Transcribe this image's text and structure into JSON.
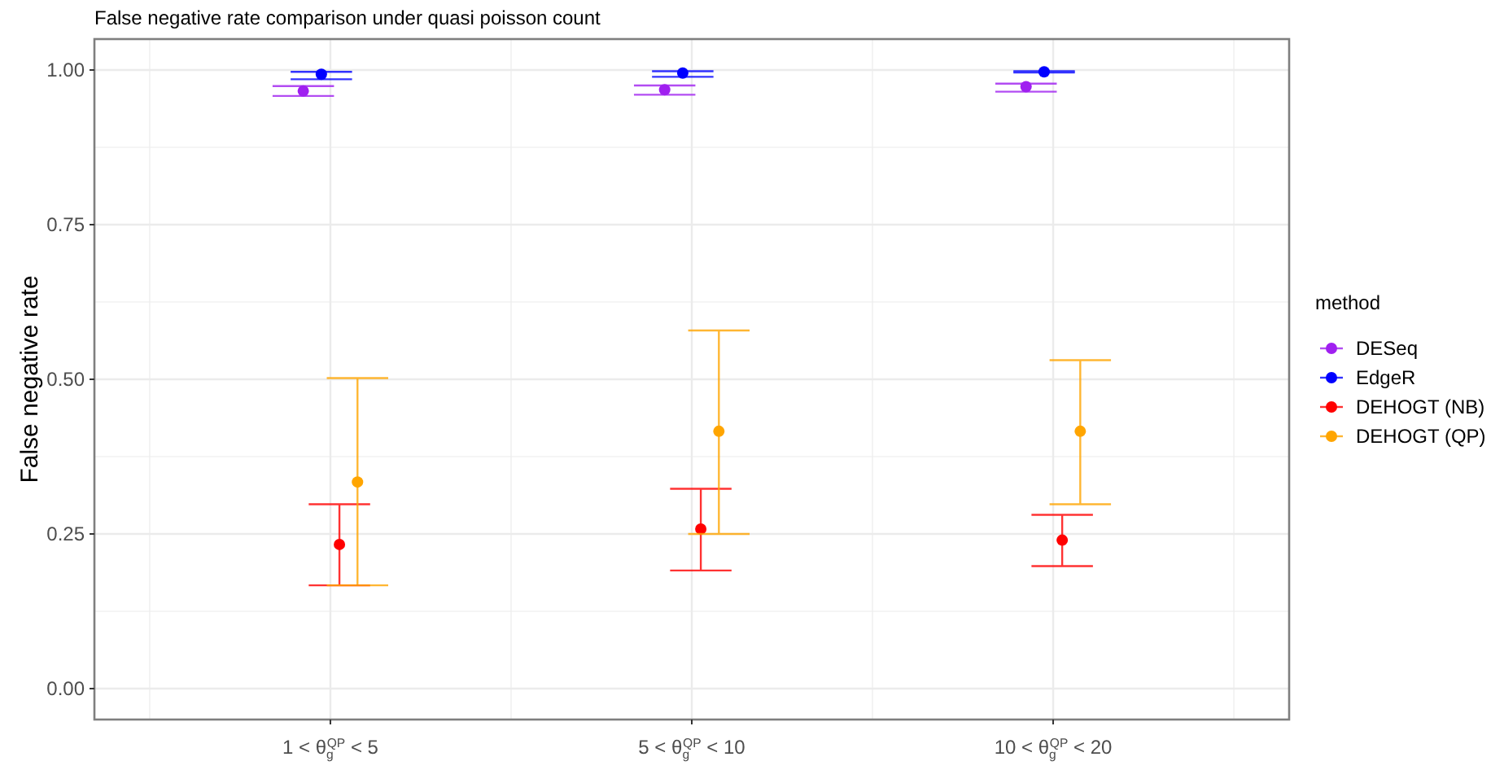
{
  "chart_data": {
    "type": "scatter",
    "title": "False negative rate comparison under quasi poisson count",
    "ylabel": "False negative rate",
    "legend_title": "method",
    "categories": [
      "1 < θ$_{g}$$^{QP}$ < 5",
      "5 < θ$_{g}$$^{QP}$ < 10",
      "10 < θ$_{g}$$^{QP}$ < 20"
    ],
    "series": [
      {
        "name": "DESeq",
        "color": "#a020f0",
        "values": [
          0.966,
          0.968,
          0.973
        ],
        "errors": [
          [
            0.958,
            0.974
          ],
          [
            0.96,
            0.975
          ],
          [
            0.965,
            0.978
          ]
        ]
      },
      {
        "name": "EdgeR",
        "color": "#0000ff",
        "values": [
          0.993,
          0.995,
          0.997
        ],
        "errors": [
          [
            0.985,
            0.997
          ],
          [
            0.989,
            0.998
          ],
          [
            0.996,
            0.998
          ]
        ]
      },
      {
        "name": "DEHOGT (NB)",
        "color": "#ff0000",
        "values": [
          0.233,
          0.258,
          0.24
        ],
        "errors": [
          [
            0.167,
            0.298
          ],
          [
            0.191,
            0.323
          ],
          [
            0.198,
            0.281
          ]
        ]
      },
      {
        "name": "DEHOGT (QP)",
        "color": "#ffa500",
        "values": [
          0.334,
          0.416,
          0.416
        ],
        "errors": [
          [
            0.167,
            0.502
          ],
          [
            0.25,
            0.579
          ],
          [
            0.298,
            0.531
          ]
        ]
      }
    ],
    "ylim": [
      -0.05,
      1.05
    ],
    "yticks": [
      {
        "value": 0,
        "label": "0.00"
      },
      {
        "value": 0.25,
        "label": "0.25"
      },
      {
        "value": 0.5,
        "label": "0.50"
      },
      {
        "value": 0.75,
        "label": "0.75"
      },
      {
        "value": 1,
        "label": "1.00"
      }
    ],
    "grid": true,
    "legend": "right",
    "marker": "circle"
  }
}
